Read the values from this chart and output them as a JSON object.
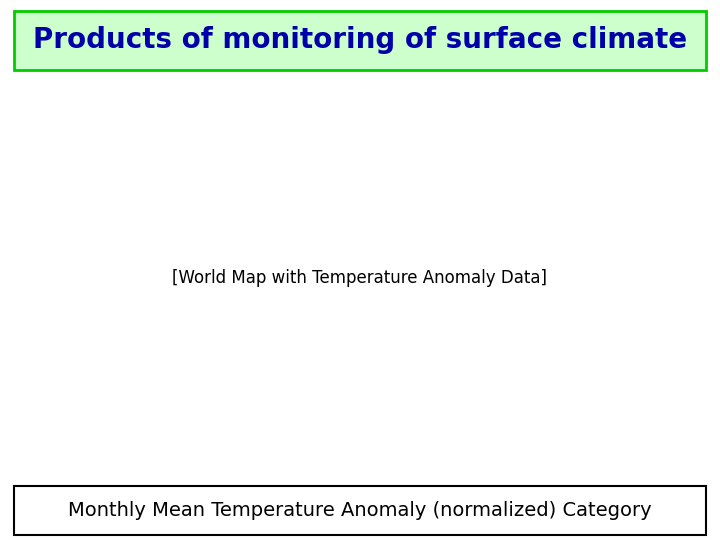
{
  "title": "Products of monitoring of surface climate",
  "subtitle": "Monthly Mean Temperature Anomaly (normalized) Category",
  "title_color": "#0000AA",
  "title_bg_color": "#ccffcc",
  "title_border_color": "#00cc00",
  "subtitle_border_color": "#000000",
  "subtitle_bg_color": "#ffffff",
  "bg_color": "#ffffff",
  "map_bg_color": "#ffffff"
}
